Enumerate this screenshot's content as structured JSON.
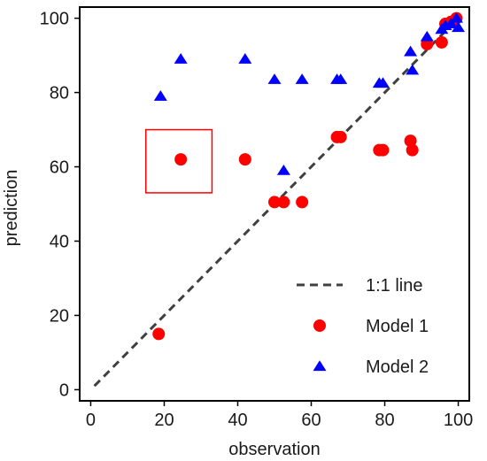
{
  "chart_data": {
    "type": "scatter",
    "xlabel": "observation",
    "ylabel": "prediction",
    "xlim": [
      -3,
      103
    ],
    "ylim": [
      -3,
      103
    ],
    "xticks": [
      0,
      20,
      40,
      60,
      80,
      100
    ],
    "yticks": [
      0,
      20,
      40,
      60,
      80,
      100
    ],
    "grid": false,
    "legend_position": "bottom-right",
    "reference_line": {
      "name": "1:1 line",
      "x": [
        1,
        100
      ],
      "y": [
        1,
        100
      ],
      "color": "#404040",
      "style": "dashed"
    },
    "series": [
      {
        "name": "Model 1",
        "marker": "circle",
        "color": "#ff0000",
        "points": [
          {
            "x": 18.5,
            "y": 15.0
          },
          {
            "x": 24.5,
            "y": 62.0
          },
          {
            "x": 42.0,
            "y": 62.0
          },
          {
            "x": 50.0,
            "y": 50.5
          },
          {
            "x": 52.5,
            "y": 50.5
          },
          {
            "x": 57.5,
            "y": 50.5
          },
          {
            "x": 67.0,
            "y": 68.0
          },
          {
            "x": 68.0,
            "y": 68.0
          },
          {
            "x": 78.5,
            "y": 64.5
          },
          {
            "x": 79.5,
            "y": 64.5
          },
          {
            "x": 87.0,
            "y": 67.0
          },
          {
            "x": 87.5,
            "y": 64.5
          },
          {
            "x": 91.5,
            "y": 93.0
          },
          {
            "x": 95.5,
            "y": 93.5
          },
          {
            "x": 96.5,
            "y": 98.5
          },
          {
            "x": 98.0,
            "y": 99.0
          },
          {
            "x": 99.5,
            "y": 100.0
          }
        ]
      },
      {
        "name": "Model 2",
        "marker": "triangle",
        "color": "#0000ff",
        "points": [
          {
            "x": 19.0,
            "y": 79.0
          },
          {
            "x": 24.5,
            "y": 89.0
          },
          {
            "x": 42.0,
            "y": 89.0
          },
          {
            "x": 50.0,
            "y": 83.5
          },
          {
            "x": 52.5,
            "y": 59.0
          },
          {
            "x": 57.5,
            "y": 83.5
          },
          {
            "x": 67.0,
            "y": 83.5
          },
          {
            "x": 68.0,
            "y": 83.5
          },
          {
            "x": 78.5,
            "y": 82.5
          },
          {
            "x": 79.5,
            "y": 82.5
          },
          {
            "x": 87.0,
            "y": 91.0
          },
          {
            "x": 87.5,
            "y": 86.0
          },
          {
            "x": 91.5,
            "y": 95.0
          },
          {
            "x": 95.5,
            "y": 97.0
          },
          {
            "x": 96.5,
            "y": 98.0
          },
          {
            "x": 98.0,
            "y": 98.5
          },
          {
            "x": 99.5,
            "y": 100.0
          },
          {
            "x": 100.0,
            "y": 97.5
          }
        ]
      }
    ],
    "highlight_box": {
      "x": [
        15,
        33
      ],
      "y": [
        53,
        70
      ],
      "color": "#ff0000"
    }
  }
}
